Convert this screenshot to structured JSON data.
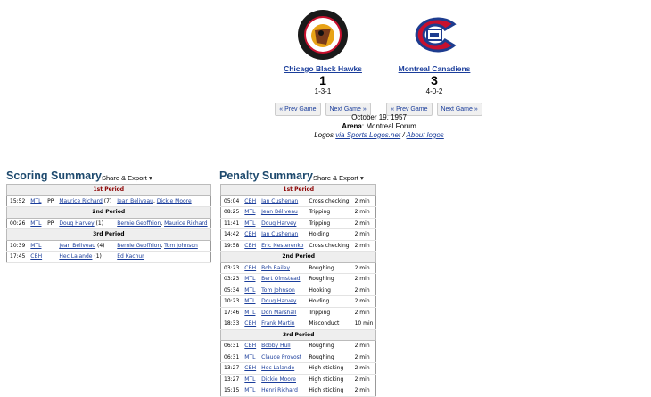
{
  "teams": [
    {
      "name": "Chicago Black Hawks",
      "score": "1",
      "periods": "1-3-1",
      "prev": "« Prev Game",
      "next": "Next Game »",
      "logo_text_top": "BLACK HAWKS",
      "logo_text_bottom": "CHICAGO"
    },
    {
      "name": "Montreal Canadiens",
      "score": "3",
      "periods": "4-0-2",
      "prev": "« Prev Game",
      "next": "Next Game »",
      "logo_text": "CH"
    }
  ],
  "game": {
    "date": "October 19, 1957",
    "arena_label": "Arena",
    "arena": ": Montreal Forum",
    "logos_prefix": "Logos ",
    "logos_link": "via Sports Logos.net",
    "sep": " / ",
    "about": "About logos"
  },
  "scoring": {
    "title": "Scoring Summary",
    "share": "Share & Export ▾",
    "periods": [
      {
        "label": "1st Period",
        "rows": [
          [
            "15:52",
            "MTL",
            "PP",
            "Maurice Richard (7)",
            "Jean Béliveau, Dickie Moore"
          ]
        ]
      },
      {
        "label": "2nd Period",
        "rows": [
          [
            "00:26",
            "MTL",
            "PP",
            "Doug Harvey (1)",
            "Bernie Geoffrion, Maurice Richard"
          ]
        ]
      },
      {
        "label": "3rd Period",
        "rows": [
          [
            "10:39",
            "MTL",
            "",
            "Jean Béliveau (4)",
            "Bernie Geoffrion, Tom Johnson"
          ],
          [
            "17:45",
            "CBH",
            "",
            "Hec Lalande (1)",
            "Ed Kachur"
          ]
        ]
      }
    ]
  },
  "penalty": {
    "title": "Penalty Summary",
    "share": "Share & Export ▾",
    "periods": [
      {
        "label": "1st Period",
        "rows": [
          [
            "05:04",
            "CBH",
            "Ian Cushenan",
            "Cross checking",
            "2 min"
          ],
          [
            "08:25",
            "MTL",
            "Jean Béliveau",
            "Tripping",
            "2 min"
          ],
          [
            "11:41",
            "MTL",
            "Doug Harvey",
            "Tripping",
            "2 min"
          ],
          [
            "14:42",
            "CBH",
            "Ian Cushenan",
            "Holding",
            "2 min"
          ],
          [
            "19:58",
            "CBH",
            "Eric Nesterenko",
            "Cross checking",
            "2 min"
          ]
        ]
      },
      {
        "label": "2nd Period",
        "rows": [
          [
            "03:23",
            "CBH",
            "Bob Bailey",
            "Roughing",
            "2 min"
          ],
          [
            "03:23",
            "MTL",
            "Bert Olmstead",
            "Roughing",
            "2 min"
          ],
          [
            "05:34",
            "MTL",
            "Tom Johnson",
            "Hooking",
            "2 min"
          ],
          [
            "10:23",
            "MTL",
            "Doug Harvey",
            "Holding",
            "2 min"
          ],
          [
            "17:46",
            "MTL",
            "Don Marshall",
            "Tripping",
            "2 min"
          ],
          [
            "18:33",
            "CBH",
            "Frank Martin",
            "Misconduct",
            "10 min"
          ]
        ]
      },
      {
        "label": "3rd Period",
        "rows": [
          [
            "06:31",
            "CBH",
            "Bobby Hull",
            "Roughing",
            "2 min"
          ],
          [
            "06:31",
            "MTL",
            "Claude Provost",
            "Roughing",
            "2 min"
          ],
          [
            "13:27",
            "CBH",
            "Hec Lalande",
            "High sticking",
            "2 min"
          ],
          [
            "13:27",
            "MTL",
            "Dickie Moore",
            "High sticking",
            "2 min"
          ],
          [
            "15:15",
            "MTL",
            "Henri Richard",
            "High sticking",
            "2 min"
          ]
        ]
      }
    ]
  }
}
